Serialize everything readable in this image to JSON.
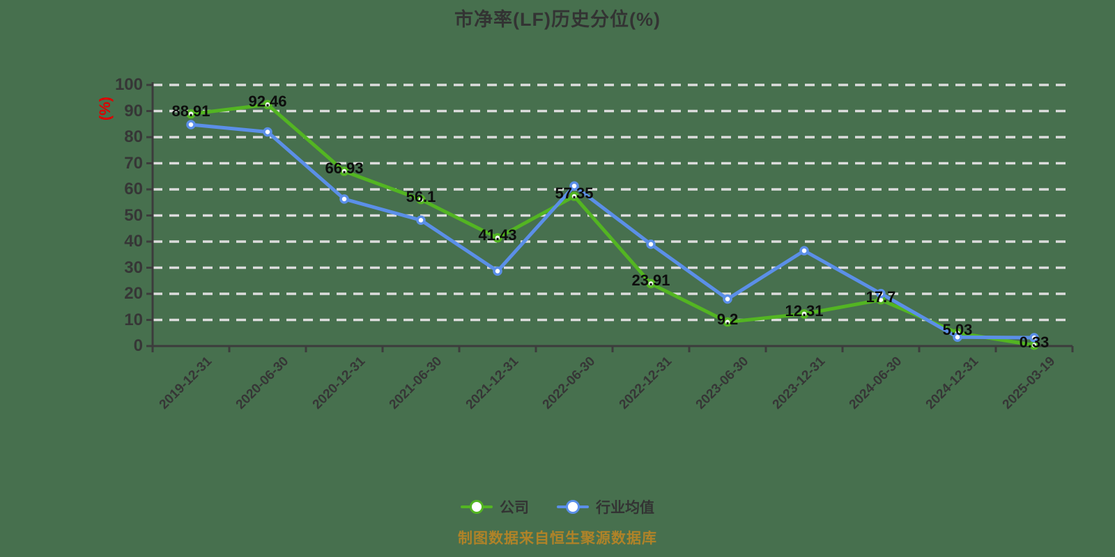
{
  "title": "市净率(LF)历史分位(%)",
  "y_axis": {
    "unit_label": "(%)",
    "min": 0,
    "max": 100,
    "tick_step": 10
  },
  "footer": "制图数据来自恒生聚源数据库",
  "chart_data": {
    "type": "line",
    "title": "市净率(LF)历史分位(%)",
    "ylabel": "(%)",
    "ylim": [
      0,
      100
    ],
    "y_tick_step": 10,
    "grid": "horizontal-dashed",
    "legend_position": "bottom",
    "categories": [
      "2019-12-31",
      "2020-06-30",
      "2020-12-31",
      "2021-06-30",
      "2021-12-31",
      "2022-06-30",
      "2022-12-31",
      "2023-06-30",
      "2023-12-31",
      "2024-06-30",
      "2024-12-31",
      "2025-03-19"
    ],
    "series": [
      {
        "name": "公司",
        "color": "#53b522",
        "values": [
          88.91,
          92.46,
          66.93,
          56.1,
          41.43,
          57.35,
          23.91,
          9.2,
          12.31,
          17.7,
          5.03,
          0.33
        ],
        "labels": [
          "88.91",
          "92.46",
          "66.93",
          "56.1",
          "41.43",
          "57.35",
          "23.91",
          "9.2",
          "12.31",
          "17.7",
          "5.03",
          "0.33"
        ],
        "show_labels": true
      },
      {
        "name": "行业均值",
        "color": "#5b8fe8",
        "values": [
          84.8,
          82.0,
          56.3,
          48.2,
          28.7,
          61.3,
          39.0,
          18.0,
          36.5,
          20.1,
          3.4,
          3.2
        ],
        "show_labels": false
      }
    ]
  },
  "colors": {
    "background": "#47704e",
    "axis": "#3c3c3c",
    "grid": "#dcdcdc",
    "title": "#333333",
    "tick_label": "#363636",
    "data_label": "#0d0d0d",
    "y_unit_label": "#dd0000",
    "legend_label": "#333333",
    "footer": "#b08328",
    "marker_fill": "#ffffff"
  }
}
